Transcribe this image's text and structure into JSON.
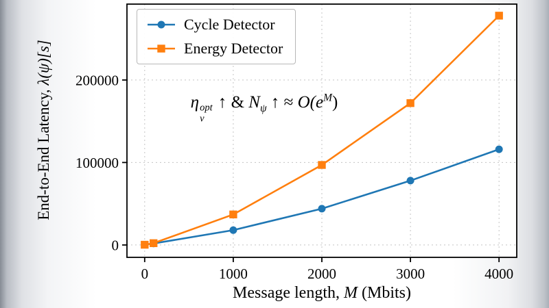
{
  "figure": {
    "bg": "#ffffff",
    "frame_color": "#000000",
    "grid_color": "#c3c3c3"
  },
  "chart_data": {
    "type": "line",
    "x": [
      0,
      100,
      1000,
      2000,
      3000,
      4000
    ],
    "series": [
      {
        "name": "Cycle Detector",
        "color": "#1f77b4",
        "marker": "circle",
        "values": [
          300,
          1800,
          18000,
          44000,
          78000,
          116000
        ]
      },
      {
        "name": "Energy Detector",
        "color": "#ff7f0e",
        "marker": "square",
        "values": [
          300,
          2200,
          37000,
          97000,
          172000,
          278000
        ]
      }
    ],
    "title": "",
    "xlabel": {
      "pre": "Message length, ",
      "math": "M",
      "post": " (Mbits)"
    },
    "ylabel": {
      "pre": "End-to-End Latency, ",
      "math": "λ(ψ)[s]"
    },
    "x_ticks": [
      0,
      1000,
      2000,
      3000,
      4000
    ],
    "y_ticks": [
      0,
      100000,
      200000
    ],
    "xlim": [
      -200,
      4200
    ],
    "ylim": [
      -15000,
      292000
    ],
    "grid": "dashed",
    "legend_position": "upper-left",
    "annotation": {
      "eta": "η",
      "eta_sup": "opt",
      "eta_sub": "v",
      "arrow1": " ↑ ",
      "amp": " & ",
      "n": "N",
      "n_sub": "ψ",
      "arrow2": " ↑ ",
      "approx": " ≈ ",
      "o": "O(e",
      "exp": "M",
      "close": ")"
    }
  }
}
